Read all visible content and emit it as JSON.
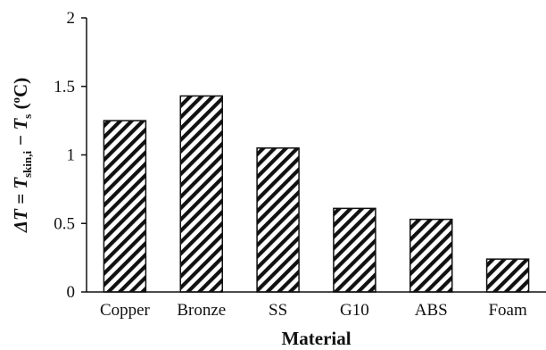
{
  "chart_data": {
    "type": "bar",
    "categories": [
      "Copper",
      "Bronze",
      "SS",
      "G10",
      "ABS",
      "Foam"
    ],
    "values": [
      1.25,
      1.43,
      1.05,
      0.61,
      0.53,
      0.24
    ],
    "title": "",
    "xlabel": "Material",
    "ylabel": {
      "lead": "ΔT = T",
      "sub1": "skin,i",
      "mid": " − T",
      "sub2": "s",
      "unit_open": " (",
      "degree": "o",
      "unit_close": "C)"
    },
    "ylim": [
      0,
      2
    ],
    "yticks": [
      0,
      0.5,
      1,
      1.5,
      2
    ],
    "ytick_labels": [
      "0",
      "0.5",
      "1",
      "1.5",
      "2"
    ],
    "bar_fill": "diagonal-hatch",
    "colors": {
      "bar_edge": "#111111",
      "hatch": "#111111",
      "axis": "#111111",
      "background": "#ffffff"
    },
    "grid": false,
    "legend": "none"
  }
}
